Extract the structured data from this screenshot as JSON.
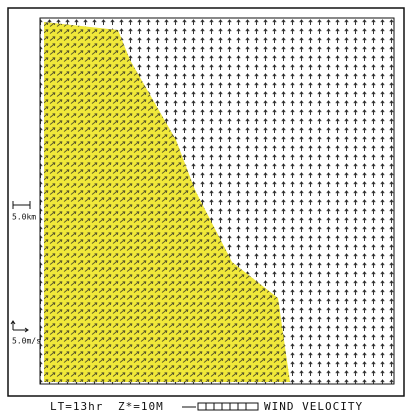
{
  "scale_labels": {
    "distance": "5.0km",
    "speed": "5.0m/s"
  },
  "caption": {
    "time": "LT=13hr",
    "height": "Z*=10M",
    "variable": "WIND VELOCITY"
  }
}
